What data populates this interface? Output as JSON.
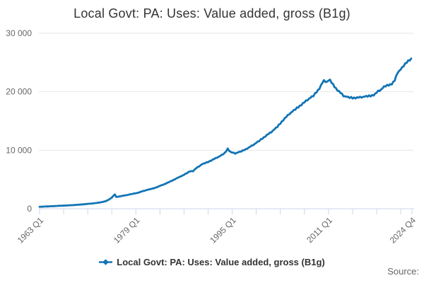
{
  "title": "Local Govt: PA: Uses: Value added, gross (B1g)",
  "legend": {
    "label": "Local Govt: PA: Uses: Value added, gross (B1g)"
  },
  "source": "Source:",
  "colors": {
    "line": "#1274b5",
    "grid": "#e6e6e6",
    "axis": "#ccd6eb",
    "title_text": "#333333",
    "axis_text": "#666666"
  },
  "chart_data": {
    "type": "line",
    "title": "Local Govt: PA: Uses: Value added, gross (B1g)",
    "legend_position": "bottom",
    "grid": "horizontal",
    "y_axis": {
      "ylim": [
        0,
        30000
      ],
      "ticks": [
        0,
        10000,
        20000,
        30000
      ],
      "tick_labels": [
        "0",
        "10 000",
        "20 000",
        "30 000"
      ]
    },
    "x_axis": {
      "domain": [
        1963.0,
        2024.875
      ],
      "tick_interval_years": 4,
      "tick_labels": [
        {
          "label": "1963 Q1",
          "year": 1963.0
        },
        {
          "label": "1979 Q1",
          "year": 1979.0
        },
        {
          "label": "1995 Q1",
          "year": 1995.0
        },
        {
          "label": "2011 Q1",
          "year": 2011.0
        },
        {
          "label": "2024 Q4",
          "year": 2024.875
        }
      ]
    },
    "series": [
      {
        "name": "Local Govt: PA: Uses: Value added, gross (B1g)",
        "points": [
          [
            1963.0,
            330
          ],
          [
            1963.5,
            350
          ],
          [
            1964,
            380
          ],
          [
            1965,
            430
          ],
          [
            1966,
            480
          ],
          [
            1967,
            530
          ],
          [
            1968,
            580
          ],
          [
            1969,
            650
          ],
          [
            1970,
            730
          ],
          [
            1971,
            820
          ],
          [
            1972,
            920
          ],
          [
            1973,
            1060
          ],
          [
            1974,
            1280
          ],
          [
            1974.5,
            1550
          ],
          [
            1975,
            1900
          ],
          [
            1975.5,
            2450
          ],
          [
            1975.75,
            2000
          ],
          [
            1976.25,
            2100
          ],
          [
            1976.75,
            2200
          ],
          [
            1977.5,
            2330
          ],
          [
            1978.5,
            2550
          ],
          [
            1979.25,
            2700
          ],
          [
            1980,
            2950
          ],
          [
            1981,
            3250
          ],
          [
            1982,
            3500
          ],
          [
            1983,
            3900
          ],
          [
            1984,
            4300
          ],
          [
            1985,
            4800
          ],
          [
            1986,
            5300
          ],
          [
            1987,
            5800
          ],
          [
            1988,
            6400
          ],
          [
            1988.5,
            6450
          ],
          [
            1989,
            6900
          ],
          [
            1990,
            7600
          ],
          [
            1991,
            8000
          ],
          [
            1992,
            8500
          ],
          [
            1993,
            9000
          ],
          [
            1993.9,
            9600
          ],
          [
            1994.2,
            10330
          ],
          [
            1994.7,
            9700
          ],
          [
            1995.5,
            9450
          ],
          [
            1996.5,
            9800
          ],
          [
            1997.5,
            10300
          ],
          [
            1998.5,
            10900
          ],
          [
            1999.5,
            11600
          ],
          [
            2000.5,
            12400
          ],
          [
            2001.5,
            13100
          ],
          [
            2002.5,
            14000
          ],
          [
            2003.5,
            15200
          ],
          [
            2004.5,
            16200
          ],
          [
            2005.5,
            17000
          ],
          [
            2006.5,
            17800
          ],
          [
            2007.5,
            18600
          ],
          [
            2008.5,
            19300
          ],
          [
            2009.5,
            20600
          ],
          [
            2010.2,
            21900
          ],
          [
            2010.7,
            21650
          ],
          [
            2011.2,
            22050
          ],
          [
            2011.7,
            21300
          ],
          [
            2012.3,
            20500
          ],
          [
            2012.9,
            19900
          ],
          [
            2013.5,
            19300
          ],
          [
            2014.2,
            19050
          ],
          [
            2015,
            18950
          ],
          [
            2016,
            19000
          ],
          [
            2017,
            19150
          ],
          [
            2018,
            19300
          ],
          [
            2018.7,
            19550
          ],
          [
            2019.2,
            20050
          ],
          [
            2019.8,
            20400
          ],
          [
            2020.3,
            20900
          ],
          [
            2021,
            21150
          ],
          [
            2021.5,
            21350
          ],
          [
            2022,
            21900
          ],
          [
            2022.5,
            23300
          ],
          [
            2023,
            23800
          ],
          [
            2023.4,
            24300
          ],
          [
            2023.8,
            24800
          ],
          [
            2024.2,
            25300
          ],
          [
            2024.6,
            25500
          ],
          [
            2024.875,
            25700
          ]
        ]
      }
    ]
  }
}
